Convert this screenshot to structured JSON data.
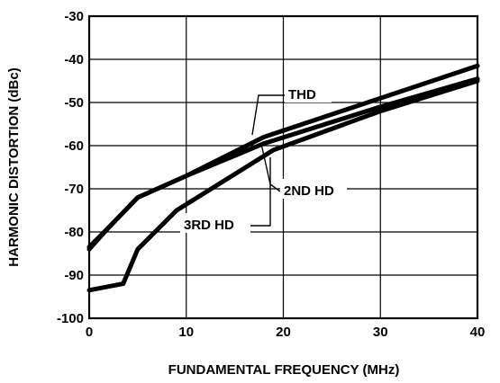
{
  "chart_data": {
    "type": "line",
    "xlabel": "FUNDAMENTAL FREQUENCY (MHz)",
    "ylabel": "HARMONIC DISTORTION (dBc)",
    "xlim": [
      0,
      40
    ],
    "ylim": [
      -100,
      -30
    ],
    "xticks": [
      "0",
      "10",
      "20",
      "30",
      "40"
    ],
    "yticks": [
      "-30",
      "-40",
      "-50",
      "-60",
      "-70",
      "-80",
      "-90",
      "-100"
    ],
    "grid": true,
    "series": [
      {
        "name": "THD",
        "x": [
          0,
          2,
          5,
          10,
          18,
          30,
          40
        ],
        "y": [
          -84,
          -79,
          -72,
          -67,
          -58,
          -49,
          -41.5
        ]
      },
      {
        "name": "2ND HD",
        "x": [
          0,
          2,
          5,
          10,
          18,
          30,
          40
        ],
        "y": [
          -83.5,
          -79,
          -72,
          -67,
          -59.5,
          -51,
          -44.5
        ]
      },
      {
        "name": "3RD HD",
        "x": [
          0,
          3.5,
          5,
          9,
          19,
          30,
          40
        ],
        "y": [
          -93.5,
          -92,
          -84,
          -75,
          -61,
          -52,
          -45
        ]
      }
    ]
  }
}
